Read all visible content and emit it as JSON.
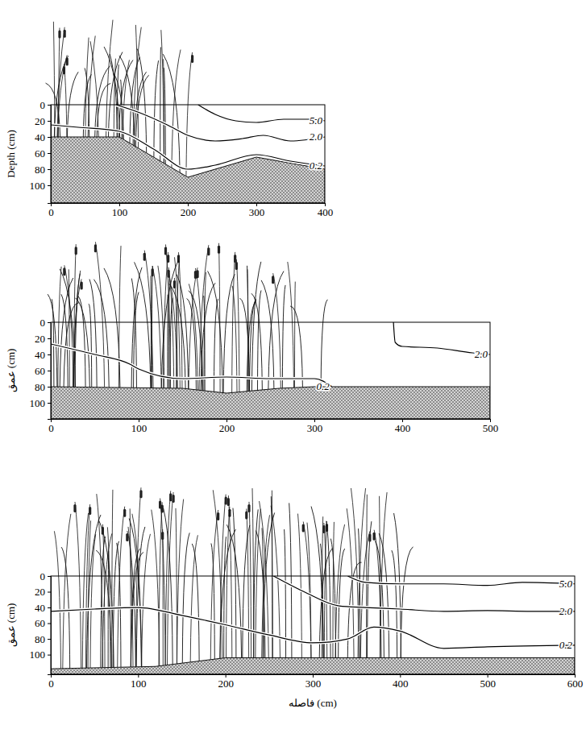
{
  "chart_data": [
    {
      "type": "contour",
      "y_label": "Depth (cm)",
      "xlim": [
        0,
        400
      ],
      "ylim": [
        0,
        122
      ],
      "xticks": [
        0,
        100,
        200,
        300,
        400
      ],
      "yticks": [
        0,
        20,
        40,
        60,
        80,
        100
      ],
      "vegetation": [
        0,
        210
      ],
      "bottom": {
        "x": [
          0,
          100,
          200,
          300,
          400
        ],
        "y": [
          40,
          40,
          90,
          65,
          80
        ]
      },
      "series": [
        {
          "name": "5.0",
          "color": "#000000",
          "x": [
            215,
            240,
            270,
            300,
            340,
            380,
            400
          ],
          "y": [
            0,
            12,
            20,
            22,
            18,
            18,
            20
          ]
        },
        {
          "name": "2.0",
          "color": "#000000",
          "x": [
            95,
            130,
            170,
            200,
            240,
            280,
            310,
            350,
            400
          ],
          "y": [
            0,
            10,
            25,
            38,
            45,
            42,
            38,
            45,
            40
          ]
        },
        {
          "name": "0.2",
          "color": "#000000",
          "x": [
            0,
            40,
            100,
            150,
            200,
            240,
            300,
            350,
            400
          ],
          "y": [
            25,
            28,
            33,
            55,
            80,
            75,
            62,
            70,
            76
          ]
        }
      ]
    },
    {
      "type": "contour",
      "y_label": "عمق (cm)",
      "xlim": [
        0,
        500
      ],
      "ylim": [
        0,
        120
      ],
      "xticks": [
        0,
        100,
        200,
        300,
        400,
        500
      ],
      "yticks": [
        0,
        20,
        40,
        60,
        80,
        100
      ],
      "vegetation": [
        0,
        315
      ],
      "bottom": {
        "x": [
          0,
          150,
          200,
          260,
          300,
          500
        ],
        "y": [
          80,
          82,
          88,
          82,
          80,
          80
        ]
      },
      "series": [
        {
          "name": "2.0",
          "color": "#000000",
          "x": [
            390,
            392,
            400,
            440,
            480,
            500
          ],
          "y": [
            0,
            25,
            30,
            32,
            38,
            40
          ]
        },
        {
          "name": "0.2",
          "color": "#000000",
          "x": [
            0,
            50,
            90,
            100,
            150,
            200,
            250,
            300,
            320
          ],
          "y": [
            27,
            40,
            52,
            58,
            70,
            68,
            70,
            70,
            80
          ]
        }
      ]
    },
    {
      "type": "contour",
      "y_label": "عمق (cm)",
      "x_label": "فاصله (cm)",
      "xlim": [
        0,
        600
      ],
      "ylim": [
        0,
        125
      ],
      "xticks": [
        0,
        100,
        200,
        300,
        400,
        500,
        600
      ],
      "yticks": [
        0,
        20,
        40,
        60,
        80,
        100
      ],
      "vegetation": [
        0,
        410
      ],
      "bottom": {
        "x": [
          0,
          120,
          200,
          600
        ],
        "y": [
          118,
          115,
          104,
          104
        ]
      },
      "series": [
        {
          "name": "5.0",
          "color": "#000000",
          "x": [
            340,
            360,
            400,
            450,
            500,
            540,
            600
          ],
          "y": [
            0,
            8,
            10,
            10,
            12,
            8,
            10
          ]
        },
        {
          "name": "2.0",
          "color": "#000000",
          "x": [
            255,
            290,
            330,
            360,
            400,
            450,
            500,
            550,
            600
          ],
          "y": [
            0,
            20,
            38,
            40,
            42,
            45,
            44,
            45,
            45
          ]
        },
        {
          "name": "0.2",
          "color": "#000000",
          "x": [
            0,
            50,
            100,
            150,
            200,
            250,
            300,
            340,
            370,
            400,
            450,
            500,
            600
          ],
          "y": [
            45,
            42,
            40,
            50,
            62,
            75,
            85,
            80,
            65,
            70,
            92,
            90,
            88
          ]
        }
      ]
    }
  ]
}
